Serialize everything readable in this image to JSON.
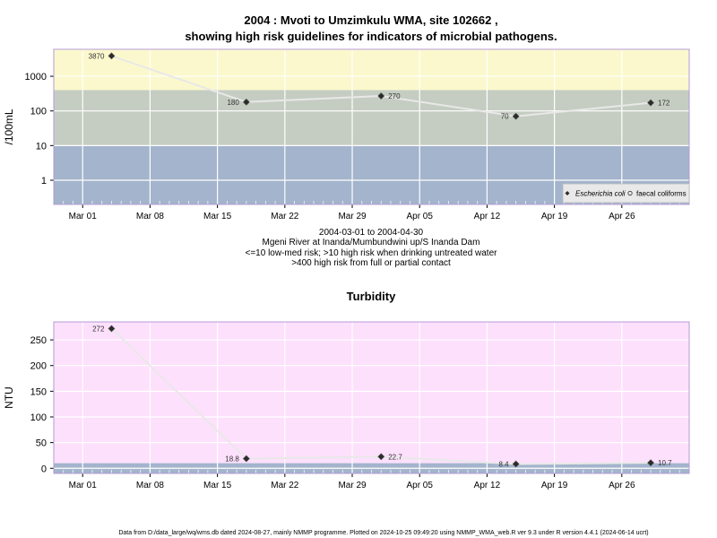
{
  "chart_data": [
    {
      "type": "line",
      "title": "2004 : Mvoti to Umzimkulu WMA, site 102662 ,",
      "subtitle": "showing high risk guidelines for indicators of microbial pathogens.",
      "ylabel": "/100mL",
      "y_scale": "log10",
      "ylim": [
        0.2,
        6000
      ],
      "y_ticks": [
        "1",
        "10",
        "100",
        "1000"
      ],
      "xlim": [
        "2004-02-27",
        "2004-05-03"
      ],
      "x_ticks": [
        {
          "date": "2004-03-01",
          "label": "Mar 01"
        },
        {
          "date": "2004-03-08",
          "label": "Mar 08"
        },
        {
          "date": "2004-03-15",
          "label": "Mar 15"
        },
        {
          "date": "2004-03-22",
          "label": "Mar 22"
        },
        {
          "date": "2004-03-29",
          "label": "Mar 29"
        },
        {
          "date": "2004-04-05",
          "label": "Apr 05"
        },
        {
          "date": "2004-04-12",
          "label": "Apr 12"
        },
        {
          "date": "2004-04-19",
          "label": "Apr 19"
        },
        {
          "date": "2004-04-26",
          "label": "Apr 26"
        }
      ],
      "grid": true,
      "bands": [
        {
          "from": 0.2,
          "to": 10,
          "color": "#a3b4cc"
        },
        {
          "from": 10,
          "to": 400,
          "color": "#c5cdc2"
        },
        {
          "from": 400,
          "to": 6000,
          "color": "#fbf8cd"
        }
      ],
      "series": [
        {
          "name": "Escherichia coli",
          "marker": "filled-diamond",
          "line_color": "#e8e8e8",
          "x": [
            "2004-03-04",
            "2004-03-18",
            "2004-04-01",
            "2004-04-15",
            "2004-04-29"
          ],
          "values": [
            3870,
            180,
            270,
            70,
            172
          ],
          "labels": [
            "3870",
            "180",
            "270",
            "70",
            "172"
          ]
        },
        {
          "name": "faecal coliforms",
          "marker": "open-circle",
          "x": [],
          "values": []
        }
      ],
      "legend_position": "bottom-right",
      "captions": [
        "2004-03-01 to 2004-04-30",
        "Mgeni River at Inanda/Mumbundwini up/S Inanda Dam",
        "<=10 low-med risk; >10 high risk when drinking untreated water",
        ">400 high risk from full or partial contact"
      ]
    },
    {
      "type": "line",
      "title": "Turbidity",
      "ylabel": "NTU",
      "ylim": [
        -10,
        285
      ],
      "y_ticks": [
        "0",
        "50",
        "100",
        "150",
        "200",
        "250"
      ],
      "xlim": [
        "2004-02-27",
        "2004-05-03"
      ],
      "x_ticks": [
        {
          "date": "2004-03-01",
          "label": "Mar 01"
        },
        {
          "date": "2004-03-08",
          "label": "Mar 08"
        },
        {
          "date": "2004-03-15",
          "label": "Mar 15"
        },
        {
          "date": "2004-03-22",
          "label": "Mar 22"
        },
        {
          "date": "2004-03-29",
          "label": "Mar 29"
        },
        {
          "date": "2004-04-05",
          "label": "Apr 05"
        },
        {
          "date": "2004-04-12",
          "label": "Apr 12"
        },
        {
          "date": "2004-04-19",
          "label": "Apr 19"
        },
        {
          "date": "2004-04-26",
          "label": "Apr 26"
        }
      ],
      "grid": true,
      "bands": [
        {
          "from": -10,
          "to": 10,
          "color": "#a3b4cc"
        },
        {
          "from": 10,
          "to": 285,
          "color": "#fde0fc"
        }
      ],
      "series": [
        {
          "name": "Turbidity",
          "marker": "filled-diamond",
          "line_color": "#e8e8e8",
          "x": [
            "2004-03-04",
            "2004-03-18",
            "2004-04-01",
            "2004-04-15",
            "2004-04-29"
          ],
          "values": [
            272,
            18.8,
            22.7,
            8.4,
            10.7
          ],
          "labels": [
            "272",
            "18.8",
            "22.7",
            "8.4",
            "10.7"
          ]
        }
      ]
    }
  ],
  "footer": "Data from D:/data_large/wq/wms.db dated 2024-08-27, mainly NMMP programme. Plotted on 2024-10-25 09:49:20 using NMMP_WMA_web.R ver 9.3 under R version 4.4.1 (2024-06-14 ucrt)"
}
